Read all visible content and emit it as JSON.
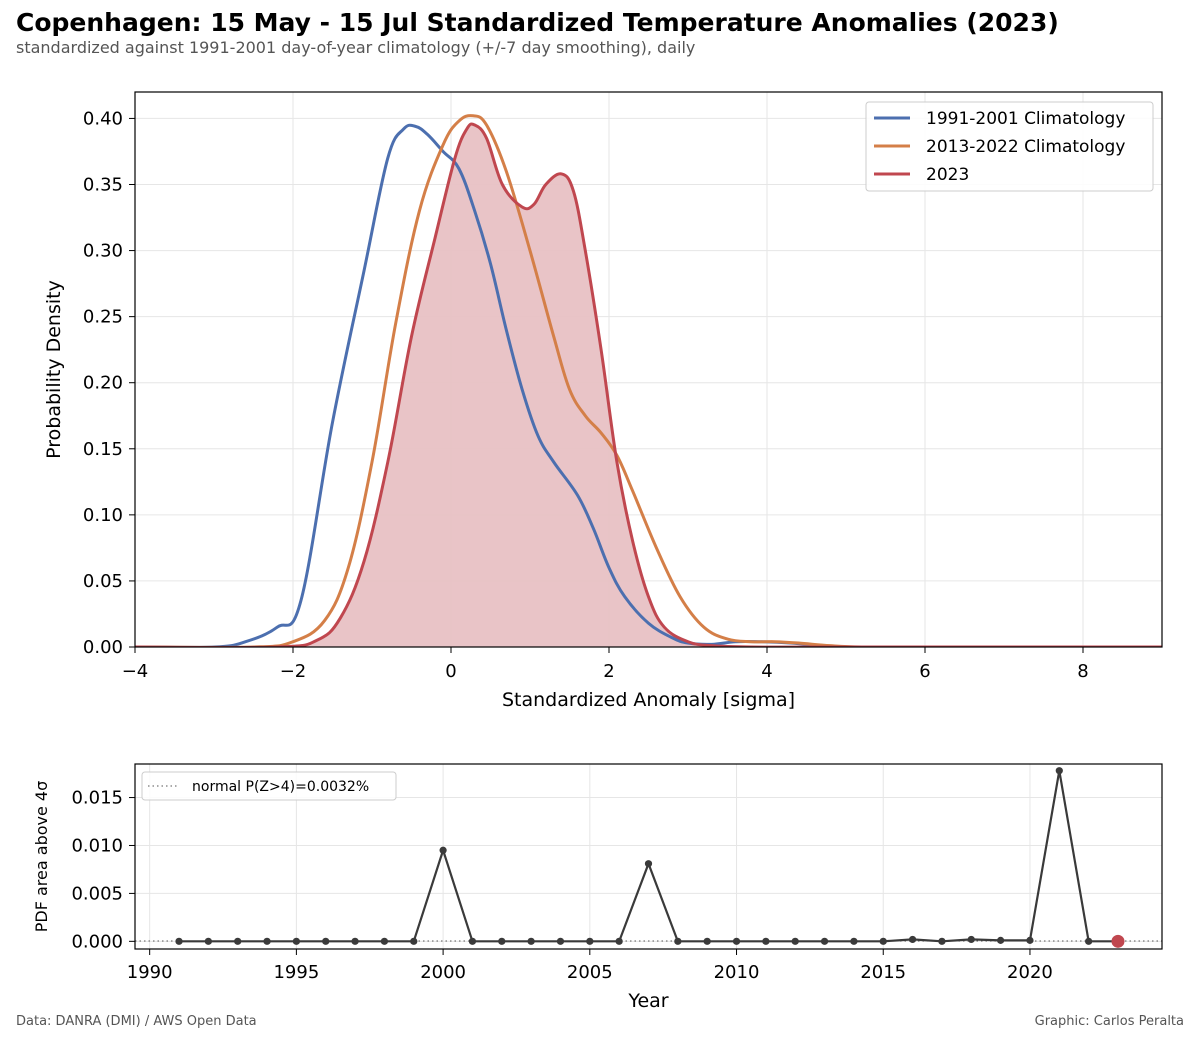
{
  "header": {
    "title": "Copenhagen: 15 May - 15 Jul Standardized Temperature Anomalies (2023)",
    "subtitle": "standardized against 1991-2001 day-of-year climatology (+/-7 day smoothing), daily"
  },
  "footer": {
    "source": "Data: DANRA (DMI) / AWS Open Data",
    "credit": "Graphic: Carlos Peralta"
  },
  "chart_data": [
    {
      "type": "line",
      "xlabel": "Standardized Anomaly [sigma]",
      "ylabel": "Probability Density",
      "xlim": [
        -4,
        9
      ],
      "ylim": [
        0,
        0.42
      ],
      "xticks": [
        -4,
        -2,
        0,
        2,
        4,
        6,
        8
      ],
      "xtick_labels": [
        "−4",
        "−2",
        "0",
        "2",
        "4",
        "6",
        "8"
      ],
      "yticks": [
        0.0,
        0.05,
        0.1,
        0.15,
        0.2,
        0.25,
        0.3,
        0.35,
        0.4
      ],
      "ytick_labels": [
        "0.00",
        "0.05",
        "0.10",
        "0.15",
        "0.20",
        "0.25",
        "0.30",
        "0.35",
        "0.40"
      ],
      "grid": true,
      "legend_position": "top-right",
      "series": [
        {
          "name": "1991-2001 Climatology",
          "color": "#4c6faf",
          "fill": false,
          "x": [
            -4,
            -3,
            -2.6,
            -2.2,
            -1.9,
            -1.5,
            -1.1,
            -0.8,
            -0.6,
            -0.45,
            -0.3,
            -0.1,
            0.1,
            0.3,
            0.5,
            0.7,
            0.9,
            1.1,
            1.3,
            1.6,
            1.8,
            2.0,
            2.2,
            2.5,
            2.8,
            3.0,
            3.3,
            3.6,
            3.9,
            4.3,
            4.7,
            5,
            6,
            7,
            8,
            9
          ],
          "y": [
            0.0,
            0.0,
            0.004,
            0.015,
            0.035,
            0.17,
            0.285,
            0.37,
            0.392,
            0.394,
            0.388,
            0.375,
            0.362,
            0.33,
            0.29,
            0.24,
            0.195,
            0.16,
            0.14,
            0.115,
            0.09,
            0.06,
            0.038,
            0.018,
            0.007,
            0.003,
            0.002,
            0.004,
            0.004,
            0.003,
            0.001,
            0.0,
            0.0,
            0.0,
            0.0,
            0.0
          ]
        },
        {
          "name": "2013-2022 Climatology",
          "color": "#d47f48",
          "fill": false,
          "x": [
            -4,
            -2.5,
            -2.0,
            -1.6,
            -1.3,
            -1.0,
            -0.7,
            -0.4,
            -0.1,
            0.1,
            0.28,
            0.45,
            0.7,
            1.0,
            1.3,
            1.5,
            1.7,
            1.9,
            2.1,
            2.3,
            2.6,
            2.9,
            3.2,
            3.5,
            3.8,
            4.1,
            4.4,
            4.8,
            5.2,
            6,
            7,
            8,
            9
          ],
          "y": [
            0.0,
            0.0,
            0.004,
            0.02,
            0.06,
            0.14,
            0.245,
            0.33,
            0.38,
            0.398,
            0.402,
            0.395,
            0.36,
            0.3,
            0.235,
            0.195,
            0.175,
            0.162,
            0.145,
            0.118,
            0.075,
            0.038,
            0.015,
            0.006,
            0.004,
            0.004,
            0.003,
            0.001,
            0.0,
            0.0,
            0.0,
            0.0,
            0.0
          ]
        },
        {
          "name": "2023",
          "color": "#c0474f",
          "fill": true,
          "fill_color": "#e8c1c4",
          "x": [
            -4,
            -2.2,
            -1.7,
            -1.4,
            -1.1,
            -0.8,
            -0.5,
            -0.2,
            0.05,
            0.2,
            0.3,
            0.45,
            0.65,
            0.9,
            1.05,
            1.2,
            1.4,
            1.55,
            1.7,
            1.9,
            2.1,
            2.3,
            2.5,
            2.7,
            3.0,
            3.3,
            3.8,
            5,
            9
          ],
          "y": [
            0.0,
            0.0,
            0.005,
            0.022,
            0.065,
            0.14,
            0.235,
            0.31,
            0.37,
            0.392,
            0.395,
            0.385,
            0.35,
            0.333,
            0.335,
            0.35,
            0.358,
            0.345,
            0.3,
            0.225,
            0.14,
            0.08,
            0.038,
            0.015,
            0.004,
            0.001,
            0.0,
            0.0,
            0.0
          ]
        }
      ]
    },
    {
      "type": "line",
      "xlabel": "Year",
      "ylabel": "PDF area above 4σ",
      "xlim": [
        1989.5,
        2024.5
      ],
      "ylim": [
        -0.0008,
        0.0185
      ],
      "xticks": [
        1990,
        1995,
        2000,
        2005,
        2010,
        2015,
        2020
      ],
      "xtick_labels": [
        "1990",
        "1995",
        "2000",
        "2005",
        "2010",
        "2015",
        "2020"
      ],
      "yticks": [
        0.0,
        0.005,
        0.01,
        0.015
      ],
      "ytick_labels": [
        "0.000",
        "0.005",
        "0.010",
        "0.015"
      ],
      "grid": true,
      "legend_position": "top-left",
      "reference_line": {
        "name": "normal P(Z>4)=0.0032%",
        "value": 3.2e-05,
        "style": "dotted",
        "color": "#555555"
      },
      "series": [
        {
          "name": "",
          "color": "#3a3a3a",
          "x": [
            1991,
            1992,
            1993,
            1994,
            1995,
            1996,
            1997,
            1998,
            1999,
            2000,
            2001,
            2002,
            2003,
            2004,
            2005,
            2006,
            2007,
            2008,
            2009,
            2010,
            2011,
            2012,
            2013,
            2014,
            2015,
            2016,
            2017,
            2018,
            2019,
            2020,
            2021,
            2022
          ],
          "y": [
            0.0,
            0.0,
            0.0,
            0.0,
            0.0,
            0.0,
            0.0,
            0.0,
            0.0,
            0.0095,
            0.0,
            0.0,
            0.0,
            0.0,
            0.0,
            0.0,
            0.0081,
            0.0,
            0.0,
            0.0,
            0.0,
            0.0,
            0.0,
            0.0,
            0.0,
            0.0002,
            0.0,
            0.0002,
            0.0001,
            0.0001,
            0.0178,
            0.0
          ]
        }
      ],
      "highlight_point": {
        "x": 2023,
        "y": 0.0,
        "color": "#c0474f"
      }
    }
  ]
}
